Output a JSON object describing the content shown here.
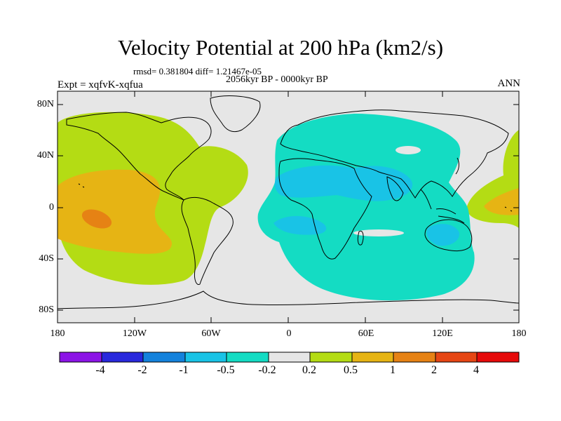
{
  "figure": {
    "title": "Velocity Potential at 200 hPa (km2/s)",
    "stats": "rmsd= 0.381804 diff= 1.21467e-05",
    "period": "2056kyr BP - 0000kyr BP",
    "experiment": "Expt = xqfvK-xqfua",
    "season": "ANN"
  },
  "axes": {
    "lat_ticks": [
      "80N",
      "40N",
      "0",
      "40S",
      "80S"
    ],
    "lon_ticks": [
      "180",
      "120W",
      "60W",
      "0",
      "60E",
      "120E",
      "180"
    ]
  },
  "colorbar": {
    "labels": [
      "-4",
      "-2",
      "-1",
      "-0.5",
      "-0.2",
      "0.2",
      "0.5",
      "1",
      "2",
      "4"
    ],
    "colors": [
      "#8c14e6",
      "#2828dc",
      "#1482dc",
      "#19c3e6",
      "#14dcc3",
      "#e6e6e6",
      "#b4dc14",
      "#e6b414",
      "#e68214",
      "#e64614",
      "#e60a0a"
    ]
  },
  "map_colors": {
    "land_outline": "#000000",
    "neutral": "#e6e6e6",
    "positive_low": "#b4dc14",
    "positive_mid": "#e6b414",
    "positive_high": "#e68214",
    "negative_low": "#14dcc3",
    "negative_mid": "#19c3e6"
  }
}
